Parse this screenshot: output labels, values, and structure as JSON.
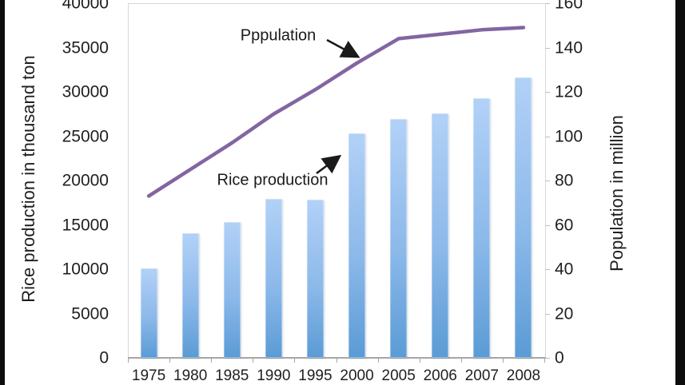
{
  "chart_data": {
    "type": "combo",
    "categories": [
      "1975",
      "1980",
      "1985",
      "1990",
      "1995",
      "2000",
      "2005",
      "2006",
      "2007",
      "2008"
    ],
    "series": [
      {
        "name": "Rice production",
        "type": "bar",
        "axis": "left",
        "unit": "thousand ton",
        "values": [
          10100,
          14100,
          15300,
          17900,
          17850,
          25300,
          26900,
          27600,
          29300,
          31600
        ]
      },
      {
        "name": "Pppulation",
        "type": "line",
        "axis": "right",
        "unit": "million",
        "values": [
          73,
          85,
          97,
          110,
          121,
          133,
          144,
          146,
          148,
          149
        ]
      }
    ],
    "left_axis": {
      "title": "Rice production in thousand ton",
      "min": 0,
      "max": 40000,
      "tick_step": 5000,
      "tick_labels": [
        "0",
        "5000",
        "10000",
        "15000",
        "20000",
        "25000",
        "30000",
        "35000",
        "40000"
      ]
    },
    "right_axis": {
      "title": "Population in million",
      "min": 0,
      "max": 160,
      "tick_step": 20,
      "tick_labels": [
        "0",
        "20",
        "40",
        "60",
        "80",
        "100",
        "120",
        "140",
        "160"
      ]
    },
    "annotations": {
      "population": {
        "text": "Pppulation"
      },
      "rice": {
        "text": "Rice production"
      }
    },
    "legend_position": "none",
    "grid": "off",
    "colors": {
      "bar_top": "#b2d1f7",
      "bar_bottom": "#5b9bd5",
      "line": "#8265a2",
      "arrow": "#1a1a1a",
      "plot_border": "#d9d9d9",
      "axis_line": "#a6a6a6",
      "text": "#1f1f1f"
    }
  }
}
